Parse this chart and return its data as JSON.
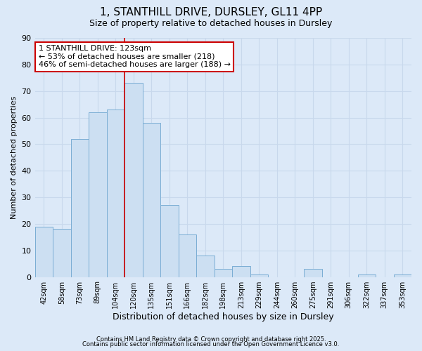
{
  "title": "1, STANTHILL DRIVE, DURSLEY, GL11 4PP",
  "subtitle": "Size of property relative to detached houses in Dursley",
  "xlabel": "Distribution of detached houses by size in Dursley",
  "ylabel": "Number of detached properties",
  "categories": [
    "42sqm",
    "58sqm",
    "73sqm",
    "89sqm",
    "104sqm",
    "120sqm",
    "135sqm",
    "151sqm",
    "166sqm",
    "182sqm",
    "198sqm",
    "213sqm",
    "229sqm",
    "244sqm",
    "260sqm",
    "275sqm",
    "291sqm",
    "306sqm",
    "322sqm",
    "337sqm",
    "353sqm"
  ],
  "values": [
    19,
    18,
    52,
    62,
    63,
    73,
    58,
    27,
    16,
    8,
    3,
    4,
    1,
    0,
    0,
    3,
    0,
    0,
    1,
    0,
    1
  ],
  "bar_color": "#ccdff2",
  "bar_edge_color": "#7aadd4",
  "grid_color": "#c8d8ec",
  "background_color": "#dce9f8",
  "annotation_line1": "1 STANTHILL DRIVE: 123sqm",
  "annotation_line2": "← 53% of detached houses are smaller (218)",
  "annotation_line3": "46% of semi-detached houses are larger (188) →",
  "vline_color": "#cc0000",
  "vline_x_index": 5,
  "ylim": [
    0,
    90
  ],
  "yticks": [
    0,
    10,
    20,
    30,
    40,
    50,
    60,
    70,
    80,
    90
  ],
  "footnote1": "Contains HM Land Registry data © Crown copyright and database right 2025.",
  "footnote2": "Contains public sector information licensed under the Open Government Licence v3.0.",
  "title_fontsize": 11,
  "subtitle_fontsize": 9,
  "tick_fontsize": 7,
  "xlabel_fontsize": 9,
  "ylabel_fontsize": 8,
  "annotation_fontsize": 8
}
